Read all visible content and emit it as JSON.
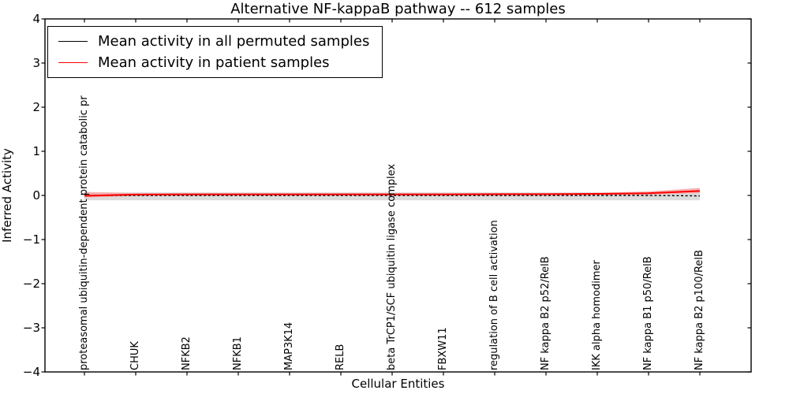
{
  "chart_data": {
    "type": "line",
    "title": "Alternative NF-kappaB pathway -- 612 samples",
    "xlabel": "Cellular Entities",
    "ylabel": "Inferred Activity",
    "ylim": [
      -4,
      4
    ],
    "yticks": [
      4,
      3,
      2,
      1,
      0,
      -1,
      -2,
      -3,
      -4
    ],
    "grid": false,
    "legend_position": "upper left",
    "categories": [
      "proteasomal ubiquitin-dependent protein catabolic pr",
      "CHUK",
      "NFKB2",
      "NFKB1",
      "MAP3K14",
      "RELB",
      "beta TrCP1/SCF ubiquitin ligase complex",
      "FBXW11",
      "regulation of B cell activation",
      "NF kappa B2 p52/RelB",
      "IKK alpha homodimer",
      "NF kappa B1 p50/RelB",
      "NF kappa B2 p100/RelB"
    ],
    "series": [
      {
        "name": "Mean activity in all permuted samples",
        "color": "#000000",
        "width": 1.4,
        "dash": "3,2.6",
        "values": [
          0,
          0,
          0,
          0,
          0,
          0,
          0,
          0,
          0,
          0,
          0,
          0,
          -0.01
        ]
      },
      {
        "name": "Mean activity in patient samples",
        "color": "#ff0000",
        "width": 2,
        "dash": "",
        "values": [
          -0.01,
          0.02,
          0.025,
          0.025,
          0.025,
          0.025,
          0.025,
          0.025,
          0.03,
          0.03,
          0.035,
          0.05,
          0.1
        ]
      }
    ],
    "bands": [
      {
        "name": "permuted-samples-spread",
        "color": "#dcdcdc",
        "high": [
          0.07,
          0.07,
          0.07,
          0.07,
          0.07,
          0.07,
          0.07,
          0.07,
          0.07,
          0.07,
          0.07,
          0.07,
          0.07
        ],
        "low": [
          -0.11,
          -0.11,
          -0.11,
          -0.11,
          -0.11,
          -0.11,
          -0.11,
          -0.11,
          -0.11,
          -0.11,
          -0.11,
          -0.11,
          -0.11
        ]
      },
      {
        "name": "patient-samples-spread",
        "color": "#f4b0b0",
        "high": [
          0.08,
          0.05,
          0.045,
          0.045,
          0.045,
          0.045,
          0.045,
          0.045,
          0.05,
          0.05,
          0.06,
          0.09,
          0.17
        ],
        "low": [
          -0.05,
          -0.01,
          0,
          0,
          0,
          0,
          0,
          0,
          0,
          0.005,
          0.01,
          0.02,
          0.05
        ]
      }
    ]
  }
}
